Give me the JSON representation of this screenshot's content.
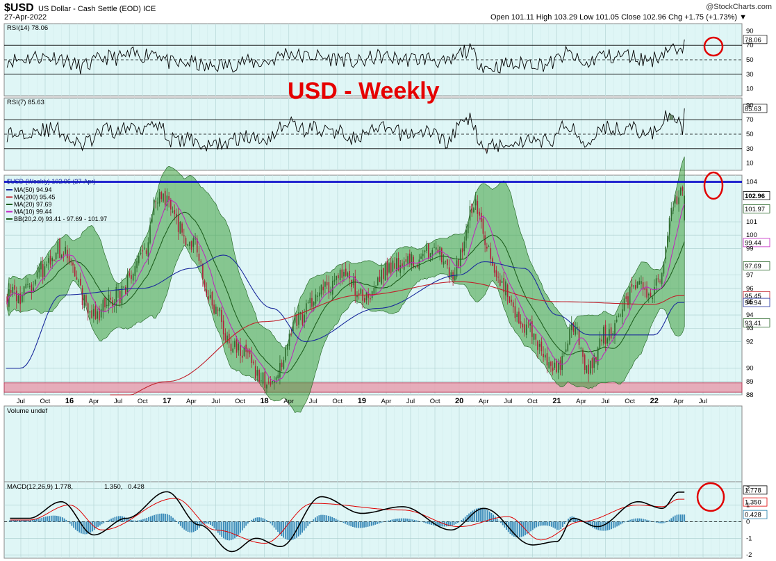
{
  "header": {
    "symbol": "$USD",
    "description": "US Dollar - Cash Settle (EOD) ICE",
    "date": "27-Apr-2022",
    "quote": "Open 101.11  High 103.29  Low 101.05  Close 102.96  Chg +1.75 (+1.73%) ▼",
    "brand": "@StockCharts.com"
  },
  "annotation_title": "USD - Weekly",
  "colors": {
    "panel_bg": "#dff6f6",
    "band_fill": "#3d9e3d",
    "up_candle": "#2e6b2e",
    "down_candle": "#b0203a",
    "ma50": "#1a2a9c",
    "ma200": "#c0202a",
    "ma20": "#1e5e1e",
    "ma10": "#c020c0",
    "resistance": "#0000c8",
    "support_zone": "#e8a0b0",
    "circle": "#e00000",
    "macd_line": "#000000",
    "signal_line": "#e00000",
    "histogram": "#3a8ab8"
  },
  "chart_data": [
    {
      "type": "line",
      "panel": "RSI(14)",
      "label": "RSI(14) 78.06",
      "last_value": 78.06,
      "ylim": [
        0,
        100
      ],
      "yticks": [
        10,
        30,
        50,
        70,
        90
      ],
      "reference_levels": [
        30,
        50,
        70
      ],
      "tag": "78.06"
    },
    {
      "type": "line",
      "panel": "RSI(7)",
      "label": "RSI(7) 85.63",
      "last_value": 85.63,
      "ylim": [
        0,
        100
      ],
      "yticks": [
        10,
        30,
        50,
        70,
        90
      ],
      "reference_levels": [
        30,
        50,
        70
      ],
      "tag": "85.63"
    },
    {
      "type": "line",
      "panel": "price",
      "label": "$USD (Weekly) 102.96 (27-Apr)",
      "ylim": [
        88,
        104.5
      ],
      "yticks": [
        88,
        89,
        90,
        92,
        93,
        94,
        95,
        96,
        97,
        99,
        100,
        101,
        104
      ],
      "ytick_labels": [
        "88",
        "89",
        "90",
        "92",
        "93",
        "94",
        "95",
        "96",
        "97",
        "99",
        "100",
        "101",
        "104"
      ],
      "resistance_level": 104,
      "support_zone": [
        88.2,
        88.9
      ],
      "legend": [
        {
          "name": "MA(50) 94.94",
          "color": "#1a2a9c"
        },
        {
          "name": "MA(200) 95.45",
          "color": "#c0202a"
        },
        {
          "name": "MA(20) 97.69",
          "color": "#1e5e1e"
        },
        {
          "name": "MA(10) 99.44",
          "color": "#c020c0"
        },
        {
          "name": "BB(20,2.0) 93.41 - 97.69 - 101.97",
          "color": "#1e5e1e"
        }
      ],
      "value_tags": [
        "102.96",
        "101.97",
        "99.44",
        "97.69",
        "95.45",
        "94.94",
        "93.41"
      ],
      "series_anchors": [
        {
          "name": "close",
          "points": [
            [
              "Jul 2015",
              95.5
            ],
            [
              "Oct 2015",
              97.5
            ],
            [
              "Dec 2015",
              99.0
            ],
            [
              "Apr 2016",
              94.0
            ],
            [
              "Jul 2016",
              95.5
            ],
            [
              "Oct 2016",
              98.5
            ],
            [
              "Dec 2016",
              103.0
            ],
            [
              "Apr 2017",
              99.5
            ],
            [
              "Jul 2017",
              94.5
            ],
            [
              "Sep 2017",
              91.5
            ],
            [
              "Feb 2018",
              88.9
            ],
            [
              "May 2018",
              93.5
            ],
            [
              "Aug 2018",
              96.0
            ],
            [
              "Nov 2018",
              97.0
            ],
            [
              "Jan 2019",
              95.5
            ],
            [
              "May 2019",
              97.8
            ],
            [
              "Aug 2019",
              98.2
            ],
            [
              "Oct 2019",
              99.0
            ],
            [
              "Dec 2019",
              96.8
            ],
            [
              "Mar 2020",
              102.5
            ],
            [
              "Apr 2020",
              100.0
            ],
            [
              "Jun 2020",
              96.5
            ],
            [
              "Sep 2020",
              93.0
            ],
            [
              "Jan 2021",
              89.8
            ],
            [
              "Mar 2021",
              93.0
            ],
            [
              "May 2021",
              90.0
            ],
            [
              "Jul 2021",
              92.5
            ],
            [
              "Nov 2021",
              96.0
            ],
            [
              "Jan 2022",
              96.0
            ],
            [
              "Apr 2022",
              102.96
            ]
          ]
        },
        {
          "name": "MA(50)",
          "points": [
            [
              "Jul 2015",
              90.0
            ],
            [
              "Dec 2015",
              95.5
            ],
            [
              "Oct 2016",
              96.0
            ],
            [
              "Apr 2017",
              97.5
            ],
            [
              "Aug 2017",
              98.5
            ],
            [
              "Feb 2018",
              94.5
            ],
            [
              "Jun 2018",
              92.0
            ],
            [
              "Mar 2019",
              94.5
            ],
            [
              "Jan 2020",
              97.0
            ],
            [
              "Apr 2020",
              98.0
            ],
            [
              "Sep 2020",
              97.5
            ],
            [
              "Jan 2021",
              94.0
            ],
            [
              "May 2021",
              92.5
            ],
            [
              "Jan 2022",
              92.5
            ],
            [
              "Apr 2022",
              94.94
            ]
          ]
        },
        {
          "name": "MA(200)",
          "points": [
            [
              "Jun 2016",
              87.5
            ],
            [
              "Jan 2017",
              89.0
            ],
            [
              "Jan 2018",
              93.5
            ],
            [
              "Jan 2019",
              95.5
            ],
            [
              "Jan 2020",
              96.5
            ],
            [
              "Jan 2021",
              95.0
            ],
            [
              "Jan 2022",
              94.8
            ],
            [
              "Apr 2022",
              95.45
            ]
          ]
        },
        {
          "name": "MA(20)",
          "points": [
            [
              "Apr 2022",
              97.69
            ]
          ]
        },
        {
          "name": "MA(10)",
          "points": [
            [
              "Apr 2022",
              99.44
            ]
          ]
        },
        {
          "name": "BB lower",
          "points": [
            [
              "Apr 2022",
              93.41
            ]
          ]
        },
        {
          "name": "BB upper",
          "points": [
            [
              "Apr 2022",
              101.97
            ]
          ]
        }
      ]
    },
    {
      "type": "bar",
      "panel": "volume",
      "label": "Volume undef"
    },
    {
      "type": "line",
      "panel": "MACD",
      "label": "MACD(12,26,9)",
      "values": {
        "macd": 1.778,
        "signal": 1.35,
        "histogram": 0.428
      },
      "label_parts": [
        "MACD(12,26,9) 1.778,",
        "1.350,",
        "0.428"
      ],
      "ylim": [
        -2.2,
        2.4
      ],
      "yticks": [
        -2,
        -1,
        0,
        1,
        2
      ],
      "tags": [
        "1.778",
        "1.350",
        "0.428"
      ],
      "series_anchors": [
        {
          "name": "MACD",
          "points": [
            [
              "Aug 2015",
              0.2
            ],
            [
              "Dec 2015",
              1.2
            ],
            [
              "Apr 2016",
              -0.8
            ],
            [
              "Aug 2016",
              0.2
            ],
            [
              "Jan 2017",
              1.8
            ],
            [
              "May 2017",
              -0.2
            ],
            [
              "Sep 2017",
              -1.8
            ],
            [
              "Dec 2017",
              -1.0
            ],
            [
              "Mar 2018",
              -1.5
            ],
            [
              "Aug 2018",
              1.5
            ],
            [
              "Jan 2019",
              0.5
            ],
            [
              "Jun 2019",
              0.9
            ],
            [
              "Dec 2019",
              -0.5
            ],
            [
              "Apr 2020",
              0.8
            ],
            [
              "Oct 2020",
              -1.4
            ],
            [
              "Jan 2021",
              -1.2
            ],
            [
              "Mar 2021",
              0.2
            ],
            [
              "Jun 2021",
              -0.3
            ],
            [
              "Nov 2021",
              1.2
            ],
            [
              "Feb 2022",
              0.8
            ],
            [
              "Apr 2022",
              1.778
            ]
          ]
        },
        {
          "name": "Signal",
          "points": [
            [
              "Aug 2015",
              0.1
            ],
            [
              "Jan 2016",
              1.0
            ],
            [
              "May 2016",
              -0.5
            ],
            [
              "Feb 2017",
              1.4
            ],
            [
              "Jul 2017",
              -0.5
            ],
            [
              "Jan 2018",
              -1.3
            ],
            [
              "Jul 2018",
              1.1
            ],
            [
              "Jun 2019",
              0.7
            ],
            [
              "Jan 2020",
              -0.3
            ],
            [
              "Jul 2020",
              0.3
            ],
            [
              "Nov 2020",
              -1.1
            ],
            [
              "Apr 2021",
              0.0
            ],
            [
              "Nov 2021",
              1.0
            ],
            [
              "Feb 2022",
              0.9
            ],
            [
              "Apr 2022",
              1.35
            ]
          ]
        }
      ]
    }
  ],
  "x_axis": {
    "labels": [
      {
        "text": "Jul",
        "year": false
      },
      {
        "text": "Oct",
        "year": false
      },
      {
        "text": "16",
        "year": true
      },
      {
        "text": "Apr",
        "year": false
      },
      {
        "text": "Jul",
        "year": false
      },
      {
        "text": "Oct",
        "year": false
      },
      {
        "text": "17",
        "year": true
      },
      {
        "text": "Apr",
        "year": false
      },
      {
        "text": "Jul",
        "year": false
      },
      {
        "text": "Oct",
        "year": false
      },
      {
        "text": "18",
        "year": true
      },
      {
        "text": "Apr",
        "year": false
      },
      {
        "text": "Jul",
        "year": false
      },
      {
        "text": "Oct",
        "year": false
      },
      {
        "text": "19",
        "year": true
      },
      {
        "text": "Apr",
        "year": false
      },
      {
        "text": "Jul",
        "year": false
      },
      {
        "text": "Oct",
        "year": false
      },
      {
        "text": "20",
        "year": true
      },
      {
        "text": "Apr",
        "year": false
      },
      {
        "text": "Jul",
        "year": false
      },
      {
        "text": "Oct",
        "year": false
      },
      {
        "text": "21",
        "year": true
      },
      {
        "text": "Apr",
        "year": false
      },
      {
        "text": "Jul",
        "year": false
      },
      {
        "text": "Oct",
        "year": false
      },
      {
        "text": "22",
        "year": true
      },
      {
        "text": "Apr",
        "year": false
      },
      {
        "text": "Jul",
        "year": false
      }
    ]
  }
}
